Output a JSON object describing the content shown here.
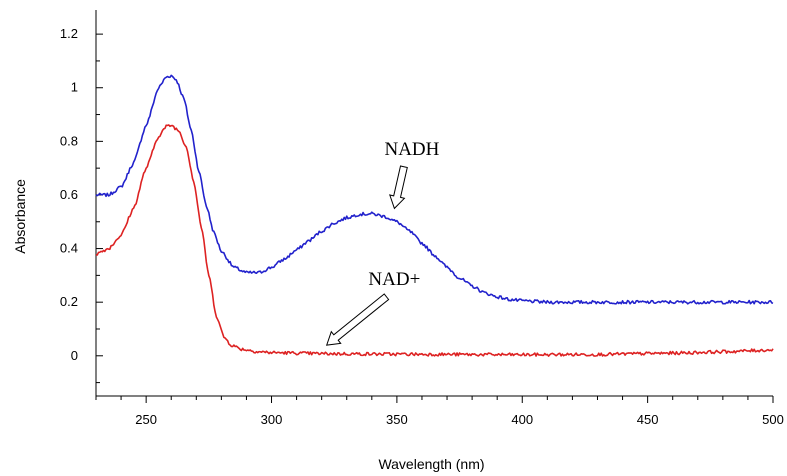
{
  "chart_data": {
    "type": "line",
    "title": "",
    "xlabel": "Wavelength (nm)",
    "ylabel": "Absorbance",
    "xlim": [
      230,
      500
    ],
    "ylim": [
      -0.15,
      1.29
    ],
    "x_ticks": [
      250,
      300,
      350,
      400,
      450,
      500
    ],
    "x_tick_labels": [
      "250",
      "300",
      "350",
      "400",
      "450",
      "500"
    ],
    "y_ticks": [
      0,
      0.2,
      0.4,
      0.6,
      0.8,
      1,
      1.2
    ],
    "y_tick_labels": [
      "0",
      "0.2",
      "0.4",
      "0.6",
      "0.8",
      "1",
      "1.2"
    ],
    "grid": false,
    "legend": "none",
    "series": [
      {
        "name": "NADH",
        "color": "#2222cc",
        "points": [
          [
            230,
            0.6
          ],
          [
            235,
            0.6
          ],
          [
            240,
            0.63
          ],
          [
            245,
            0.72
          ],
          [
            250,
            0.86
          ],
          [
            255,
            1.0
          ],
          [
            258,
            1.04
          ],
          [
            260,
            1.045
          ],
          [
            262,
            1.03
          ],
          [
            265,
            0.96
          ],
          [
            268,
            0.84
          ],
          [
            271,
            0.69
          ],
          [
            274,
            0.56
          ],
          [
            277,
            0.46
          ],
          [
            280,
            0.39
          ],
          [
            285,
            0.33
          ],
          [
            290,
            0.31
          ],
          [
            295,
            0.31
          ],
          [
            300,
            0.33
          ],
          [
            305,
            0.36
          ],
          [
            310,
            0.395
          ],
          [
            315,
            0.43
          ],
          [
            320,
            0.465
          ],
          [
            325,
            0.495
          ],
          [
            330,
            0.515
          ],
          [
            335,
            0.528
          ],
          [
            340,
            0.53
          ],
          [
            345,
            0.52
          ],
          [
            350,
            0.5
          ],
          [
            355,
            0.465
          ],
          [
            360,
            0.42
          ],
          [
            365,
            0.375
          ],
          [
            370,
            0.33
          ],
          [
            375,
            0.29
          ],
          [
            380,
            0.26
          ],
          [
            385,
            0.235
          ],
          [
            390,
            0.22
          ],
          [
            395,
            0.21
          ],
          [
            400,
            0.205
          ],
          [
            410,
            0.2
          ],
          [
            420,
            0.2
          ],
          [
            440,
            0.2
          ],
          [
            460,
            0.2
          ],
          [
            480,
            0.2
          ],
          [
            500,
            0.2
          ]
        ]
      },
      {
        "name": "NAD+",
        "color": "#dd2222",
        "points": [
          [
            230,
            0.38
          ],
          [
            235,
            0.4
          ],
          [
            240,
            0.45
          ],
          [
            245,
            0.55
          ],
          [
            250,
            0.7
          ],
          [
            255,
            0.82
          ],
          [
            258,
            0.855
          ],
          [
            260,
            0.86
          ],
          [
            263,
            0.84
          ],
          [
            266,
            0.78
          ],
          [
            269,
            0.65
          ],
          [
            272,
            0.48
          ],
          [
            275,
            0.3
          ],
          [
            278,
            0.15
          ],
          [
            281,
            0.07
          ],
          [
            284,
            0.04
          ],
          [
            288,
            0.025
          ],
          [
            295,
            0.015
          ],
          [
            300,
            0.012
          ],
          [
            320,
            0.008
          ],
          [
            350,
            0.006
          ],
          [
            400,
            0.004
          ],
          [
            430,
            0.005
          ],
          [
            460,
            0.01
          ],
          [
            480,
            0.015
          ],
          [
            500,
            0.022
          ]
        ]
      }
    ],
    "annotations": [
      {
        "text": "NADH",
        "x": 356,
        "y": 0.75,
        "arrow_to": [
          349,
          0.55
        ]
      },
      {
        "text": "NAD+",
        "x": 349,
        "y": 0.265,
        "arrow_to": [
          322,
          0.04
        ]
      }
    ]
  }
}
